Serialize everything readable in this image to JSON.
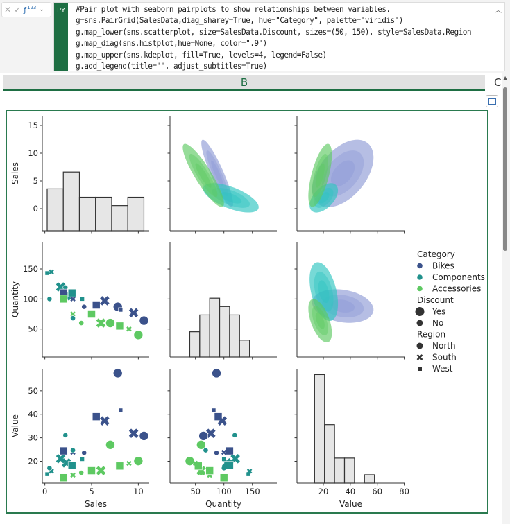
{
  "formula_bar": {
    "py_label": "PY",
    "fx_label": "ƒ",
    "fx_badge": "123",
    "code_lines": [
      "#Pair plot with seaborn pairplots to show relationships between variables.",
      "g=sns.PairGrid(SalesData,diag_sharey=True, hue=\"Category\", palette=\"viridis\")",
      "g.map_lower(sns.scatterplot, size=SalesData.Discount, sizes=(50, 150), style=SalesData.Region",
      "g.map_diag(sns.histplot,hue=None, color=\".9\")",
      "g.map_upper(sns.kdeplot, fill=True, levels=4, legend=False)",
      "g.add_legend(title=\"\", adjust_subtitles=True)"
    ]
  },
  "sheet": {
    "column_label": "B",
    "next_column_label": "C"
  },
  "chart_data": {
    "type": "pairplot",
    "variables": [
      "Sales",
      "Quantity",
      "Value"
    ],
    "axes": {
      "Sales": {
        "lim": [
          -0.27,
          11.16
        ],
        "ylim": [
          -4,
          16.75
        ],
        "xticks": [
          0,
          5,
          10
        ],
        "yticks": [
          0,
          5,
          10,
          15
        ]
      },
      "Quantity": {
        "lim": [
          5.3,
          193
        ],
        "ylim": [
          3.5,
          195
        ],
        "xticks": [
          50,
          100,
          150
        ],
        "yticks": [
          50,
          100,
          150
        ]
      },
      "Value": {
        "lim": [
          0.45,
          80.2
        ],
        "ylim": [
          10.7,
          59.4
        ],
        "xticks": [
          20,
          40,
          60,
          80
        ],
        "yticks": [
          20,
          30,
          40,
          50
        ]
      }
    },
    "diag_hist_count_lim": [
      0,
      13.7
    ],
    "histograms": {
      "Sales": {
        "edges": [
          0.25,
          1.975,
          3.7,
          5.425,
          7.15,
          8.875,
          10.6
        ],
        "counts": [
          5,
          7,
          4,
          4,
          3,
          4
        ]
      },
      "Quantity": {
        "edges": [
          40,
          57.5,
          75,
          92.5,
          110,
          127.5,
          145
        ],
        "counts": [
          3,
          5,
          7,
          6,
          5,
          2
        ]
      },
      "Value": {
        "edges": [
          13.5,
          20.9,
          28.3,
          35.7,
          43.1,
          50.5,
          57.9
        ],
        "counts": [
          13,
          7,
          3,
          3,
          0,
          1
        ]
      }
    },
    "hist_color": "#e6e6e6",
    "palette": {
      "Bikes": "#3b528b",
      "Components": "#21918c",
      "Accessories": "#5ec962"
    },
    "kde_palette": {
      "Bikes": "#8f9bd6",
      "Components": "#2ec4c0",
      "Accessories": "#5ec962"
    },
    "kde_levels": 4,
    "points": [
      {
        "Sales": 0.25,
        "Quantity": 143,
        "Value": 14.5,
        "Category": "Components",
        "Discount": "No",
        "Region": "West"
      },
      {
        "Sales": 0.7,
        "Quantity": 145,
        "Value": 15.8,
        "Category": "Components",
        "Discount": "No",
        "Region": "South"
      },
      {
        "Sales": 0.5,
        "Quantity": 100,
        "Value": 17.1,
        "Category": "Components",
        "Discount": "No",
        "Region": "North"
      },
      {
        "Sales": 1.7,
        "Quantity": 120,
        "Value": 21.1,
        "Category": "Components",
        "Discount": "Yes",
        "Region": "South"
      },
      {
        "Sales": 2.3,
        "Quantity": 105,
        "Value": 19.3,
        "Category": "Components",
        "Discount": "Yes",
        "Region": "South"
      },
      {
        "Sales": 2.2,
        "Quantity": 119,
        "Value": 31.1,
        "Category": "Components",
        "Discount": "No",
        "Region": "North"
      },
      {
        "Sales": 2.0,
        "Quantity": 110,
        "Value": 24.4,
        "Category": "Bikes",
        "Discount": "Yes",
        "Region": "West"
      },
      {
        "Sales": 2.9,
        "Quantity": 110,
        "Value": 18.3,
        "Category": "Components",
        "Discount": "Yes",
        "Region": "West"
      },
      {
        "Sales": 2.0,
        "Quantity": 100,
        "Value": 13.0,
        "Category": "Accessories",
        "Discount": "Yes",
        "Region": "West"
      },
      {
        "Sales": 3.0,
        "Quantity": 100,
        "Value": 23.8,
        "Category": "Bikes",
        "Discount": "No",
        "Region": "South"
      },
      {
        "Sales": 3.0,
        "Quantity": 75,
        "Value": 14.1,
        "Category": "Accessories",
        "Discount": "No",
        "Region": "South"
      },
      {
        "Sales": 3.0,
        "Quantity": 68,
        "Value": 24.7,
        "Category": "Components",
        "Discount": "No",
        "Region": "North"
      },
      {
        "Sales": 4.0,
        "Quantity": 100,
        "Value": 20.9,
        "Category": "Components",
        "Discount": "No",
        "Region": "West"
      },
      {
        "Sales": 4.2,
        "Quantity": 87,
        "Value": 23.6,
        "Category": "Bikes",
        "Discount": "No",
        "Region": "North"
      },
      {
        "Sales": 3.9,
        "Quantity": 60,
        "Value": 15.1,
        "Category": "Accessories",
        "Discount": "No",
        "Region": "North"
      },
      {
        "Sales": 5.5,
        "Quantity": 90,
        "Value": 39.0,
        "Category": "Bikes",
        "Discount": "Yes",
        "Region": "West"
      },
      {
        "Sales": 5.0,
        "Quantity": 75,
        "Value": 16.0,
        "Category": "Accessories",
        "Discount": "Yes",
        "Region": "West"
      },
      {
        "Sales": 6.4,
        "Quantity": 97,
        "Value": 37.2,
        "Category": "Bikes",
        "Discount": "Yes",
        "Region": "South"
      },
      {
        "Sales": 6.0,
        "Quantity": 60,
        "Value": 16.0,
        "Category": "Accessories",
        "Discount": "Yes",
        "Region": "South"
      },
      {
        "Sales": 7.0,
        "Quantity": 60,
        "Value": 27.0,
        "Category": "Accessories",
        "Discount": "Yes",
        "Region": "North"
      },
      {
        "Sales": 7.8,
        "Quantity": 87,
        "Value": 57.5,
        "Category": "Bikes",
        "Discount": "Yes",
        "Region": "North"
      },
      {
        "Sales": 8.1,
        "Quantity": 82,
        "Value": 41.7,
        "Category": "Bikes",
        "Discount": "No",
        "Region": "West"
      },
      {
        "Sales": 8.0,
        "Quantity": 55,
        "Value": 18.0,
        "Category": "Accessories",
        "Discount": "Yes",
        "Region": "West"
      },
      {
        "Sales": 9.0,
        "Quantity": 50,
        "Value": 19.1,
        "Category": "Accessories",
        "Discount": "No",
        "Region": "South"
      },
      {
        "Sales": 9.5,
        "Quantity": 77,
        "Value": 31.9,
        "Category": "Bikes",
        "Discount": "Yes",
        "Region": "South"
      },
      {
        "Sales": 10.6,
        "Quantity": 64,
        "Value": 30.8,
        "Category": "Bikes",
        "Discount": "Yes",
        "Region": "North"
      },
      {
        "Sales": 10.0,
        "Quantity": 40,
        "Value": 20.1,
        "Category": "Accessories",
        "Discount": "Yes",
        "Region": "North"
      }
    ],
    "legend": {
      "placement": "right",
      "sections": [
        {
          "title": "Category",
          "entries": [
            {
              "label": "Bikes",
              "marker": "circle",
              "color": "#3b528b",
              "size": "small"
            },
            {
              "label": "Components",
              "marker": "circle",
              "color": "#21918c",
              "size": "small"
            },
            {
              "label": "Accessories",
              "marker": "circle",
              "color": "#5ec962",
              "size": "small"
            }
          ]
        },
        {
          "title": "Discount",
          "entries": [
            {
              "label": "Yes",
              "marker": "circle",
              "color": "#333333",
              "size": "large"
            },
            {
              "label": "No",
              "marker": "circle",
              "color": "#333333",
              "size": "medium"
            }
          ]
        },
        {
          "title": "Region",
          "entries": [
            {
              "label": "North",
              "marker": "circle",
              "color": "#333333",
              "size": "medium"
            },
            {
              "label": "South",
              "marker": "x",
              "color": "#333333",
              "size": "medium"
            },
            {
              "label": "West",
              "marker": "square",
              "color": "#333333",
              "size": "small"
            }
          ]
        }
      ]
    }
  }
}
